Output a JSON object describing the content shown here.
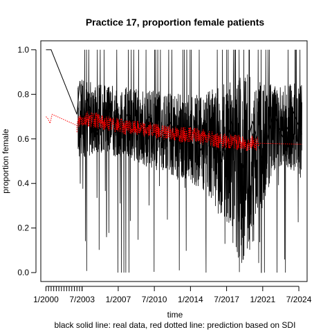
{
  "chart_data": {
    "type": "line",
    "title": "Practice 17, proportion female patients",
    "xlabel": "time",
    "ylabel": "proportion female",
    "caption": "black solid line: real data, red dotted line: prediction based on SDI",
    "xlim": [
      1999.5,
      2025.3
    ],
    "ylim": [
      -0.04,
      1.04
    ],
    "x_ticks": [
      {
        "x": 2000.0,
        "label": "1/2000"
      },
      {
        "x": 2003.5,
        "label": "7/2003"
      },
      {
        "x": 2007.0,
        "label": "1/2007"
      },
      {
        "x": 2010.5,
        "label": "7/2010"
      },
      {
        "x": 2014.0,
        "label": "1/2014"
      },
      {
        "x": 2017.5,
        "label": "7/2017"
      },
      {
        "x": 2021.0,
        "label": "1/2021"
      },
      {
        "x": 2024.5,
        "label": "7/2024"
      }
    ],
    "x_minor_step": 0.25,
    "x_minor_end": 2003.5,
    "y_ticks": [
      {
        "y": 0.0,
        "label": "0.0"
      },
      {
        "y": 0.2,
        "label": "0.2"
      },
      {
        "y": 0.4,
        "label": "0.4"
      },
      {
        "y": 0.6,
        "label": "0.6"
      },
      {
        "y": 0.8,
        "label": "0.8"
      },
      {
        "y": 1.0,
        "label": "1.0"
      }
    ],
    "series": [
      {
        "name": "real data",
        "color": "#000000",
        "style": "solid",
        "points": [
          [
            2000.0,
            1.0
          ],
          [
            2000.5,
            1.0
          ],
          [
            2003.0,
            0.71
          ],
          [
            2003.3,
            0.86
          ],
          [
            2003.6,
            0.6
          ],
          [
            2004.0,
            0.78
          ],
          [
            2005.0,
            0.62
          ],
          [
            2006.0,
            0.74
          ],
          [
            2007.0,
            0.63
          ],
          [
            2008.0,
            0.72
          ],
          [
            2009.0,
            0.62
          ],
          [
            2010.0,
            0.7
          ],
          [
            2011.0,
            0.6
          ],
          [
            2012.0,
            0.68
          ],
          [
            2013.0,
            0.58
          ],
          [
            2014.0,
            0.66
          ],
          [
            2015.0,
            0.55
          ],
          [
            2016.0,
            0.66
          ],
          [
            2017.0,
            0.5
          ],
          [
            2018.0,
            0.68
          ],
          [
            2019.0,
            0.45
          ],
          [
            2020.0,
            0.68
          ],
          [
            2021.0,
            0.5
          ],
          [
            2022.0,
            0.72
          ],
          [
            2023.0,
            0.6
          ],
          [
            2024.0,
            0.72
          ],
          [
            2024.8,
            0.62
          ]
        ],
        "band": [
          [
            2003.0,
            0.55,
            0.86
          ],
          [
            2003.3,
            0.5,
            0.88
          ],
          [
            2004.0,
            0.52,
            0.86
          ],
          [
            2005.0,
            0.54,
            0.86
          ],
          [
            2006.0,
            0.53,
            0.84
          ],
          [
            2007.0,
            0.51,
            0.84
          ],
          [
            2008.0,
            0.5,
            0.83
          ],
          [
            2009.0,
            0.49,
            0.83
          ],
          [
            2010.0,
            0.47,
            0.82
          ],
          [
            2011.0,
            0.45,
            0.82
          ],
          [
            2012.0,
            0.44,
            0.81
          ],
          [
            2013.0,
            0.41,
            0.81
          ],
          [
            2014.0,
            0.4,
            0.8
          ],
          [
            2015.0,
            0.38,
            0.8
          ],
          [
            2016.0,
            0.33,
            0.82
          ],
          [
            2017.0,
            0.25,
            0.85
          ],
          [
            2018.0,
            0.12,
            0.88
          ],
          [
            2019.0,
            0.03,
            0.9
          ],
          [
            2020.0,
            0.1,
            0.88
          ],
          [
            2021.0,
            0.28,
            0.86
          ],
          [
            2022.0,
            0.45,
            0.84
          ],
          [
            2023.0,
            0.48,
            0.84
          ],
          [
            2024.0,
            0.45,
            0.85
          ],
          [
            2024.8,
            0.42,
            0.86
          ]
        ],
        "spikes_min_x": 2003.1,
        "spikes_max_x": 2024.8
      },
      {
        "name": "prediction based on SDI",
        "color": "#ff0000",
        "style": "dotted",
        "points": [
          [
            2000.0,
            0.7
          ],
          [
            2000.2,
            0.69
          ],
          [
            2000.4,
            0.67
          ],
          [
            2000.6,
            0.71
          ],
          [
            2003.0,
            0.66
          ],
          [
            2003.3,
            0.69
          ],
          [
            2004.0,
            0.69
          ],
          [
            2005.0,
            0.68
          ],
          [
            2006.0,
            0.67
          ],
          [
            2007.0,
            0.66
          ],
          [
            2008.0,
            0.65
          ],
          [
            2009.0,
            0.65
          ],
          [
            2010.0,
            0.64
          ],
          [
            2011.0,
            0.63
          ],
          [
            2012.0,
            0.63
          ],
          [
            2013.0,
            0.62
          ],
          [
            2014.0,
            0.62
          ],
          [
            2015.0,
            0.61
          ],
          [
            2016.0,
            0.6
          ],
          [
            2017.0,
            0.59
          ],
          [
            2018.0,
            0.59
          ],
          [
            2019.0,
            0.58
          ],
          [
            2020.0,
            0.58
          ],
          [
            2021.0,
            0.58
          ],
          [
            2024.8,
            0.576
          ]
        ],
        "noisy_until_x": 2020.6,
        "noise_amplitude": 0.035
      }
    ]
  }
}
